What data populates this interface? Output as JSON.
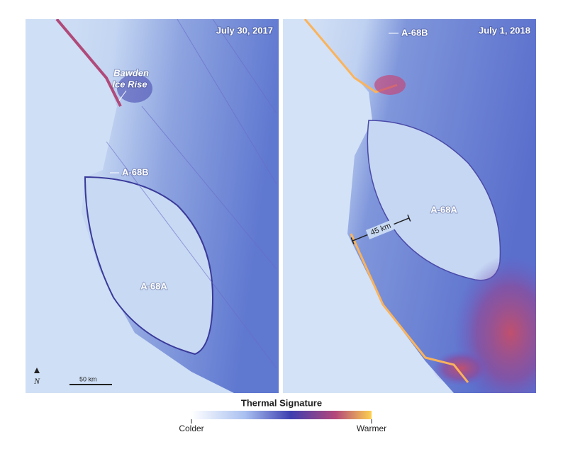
{
  "panels": [
    {
      "date": "July 30, 2017",
      "labels": {
        "rise": [
          "Bawden",
          "Ice Rise"
        ],
        "small_berg": "A-68B",
        "large_berg": "A-68A"
      },
      "scale": "50 km",
      "north": "N"
    },
    {
      "date": "July 1, 2018",
      "labels": {
        "small_berg": "A-68B",
        "large_berg": "A-68A"
      },
      "width_label": "45 km"
    }
  ],
  "legend": {
    "title": "Thermal Signature",
    "low": "Colder",
    "high": "Warmer"
  }
}
